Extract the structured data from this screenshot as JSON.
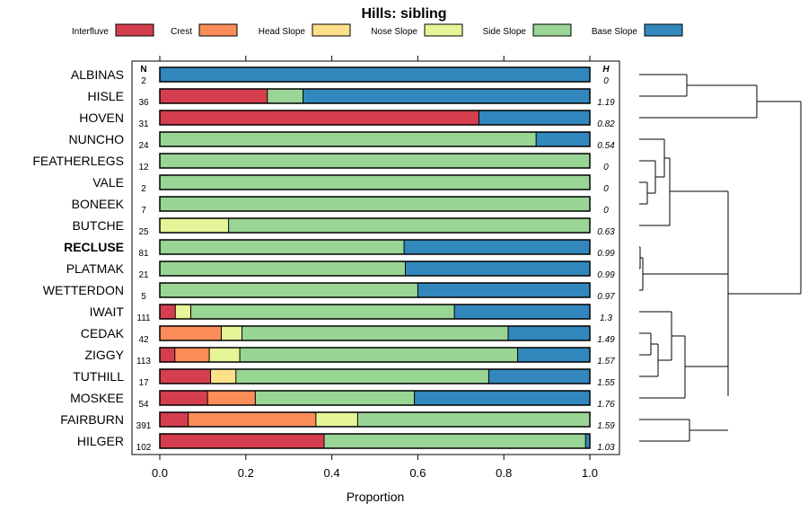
{
  "chart_data": {
    "type": "bar",
    "orientation": "horizontal",
    "stacked": true,
    "title": "Hills: sibling",
    "xlabel": "Proportion",
    "ylabel": "",
    "xlim": [
      0,
      1
    ],
    "x_ticks": [
      0.0,
      0.2,
      0.4,
      0.6,
      0.8,
      1.0
    ],
    "x_tick_labels": [
      "0.0",
      "0.2",
      "0.4",
      "0.6",
      "0.8",
      "1.0"
    ],
    "n_header": "N",
    "h_header": "H",
    "legend_position": "top",
    "categories_legend": [
      {
        "name": "Interfluve",
        "color": "#D53E4F"
      },
      {
        "name": "Crest",
        "color": "#FC8D59"
      },
      {
        "name": "Head Slope",
        "color": "#FEE08B"
      },
      {
        "name": "Nose Slope",
        "color": "#E6F598"
      },
      {
        "name": "Side Slope",
        "color": "#99D594"
      },
      {
        "name": "Base Slope",
        "color": "#3288BD"
      }
    ],
    "rows": [
      {
        "name": "ALBINAS",
        "n": "2",
        "h": "0",
        "bold": false,
        "values": [
          0,
          0,
          0,
          0,
          0,
          1.0
        ]
      },
      {
        "name": "HISLE",
        "n": "36",
        "h": "1.19",
        "bold": false,
        "values": [
          0.25,
          0,
          0,
          0,
          0.083,
          0.667
        ]
      },
      {
        "name": "HOVEN",
        "n": "31",
        "h": "0.82",
        "bold": false,
        "values": [
          0.742,
          0,
          0,
          0,
          0,
          0.258
        ]
      },
      {
        "name": "NUNCHO",
        "n": "24",
        "h": "0.54",
        "bold": false,
        "values": [
          0,
          0,
          0,
          0,
          0.875,
          0.125
        ]
      },
      {
        "name": "FEATHERLEGS",
        "n": "12",
        "h": "0",
        "bold": false,
        "values": [
          0,
          0,
          0,
          0,
          1.0,
          0
        ]
      },
      {
        "name": "VALE",
        "n": "2",
        "h": "0",
        "bold": false,
        "values": [
          0,
          0,
          0,
          0,
          1.0,
          0
        ]
      },
      {
        "name": "BONEEK",
        "n": "7",
        "h": "0",
        "bold": false,
        "values": [
          0,
          0,
          0,
          0,
          1.0,
          0
        ]
      },
      {
        "name": "BUTCHE",
        "n": "25",
        "h": "0.63",
        "bold": false,
        "values": [
          0,
          0,
          0,
          0.16,
          0.84,
          0
        ]
      },
      {
        "name": "RECLUSE",
        "n": "81",
        "h": "0.99",
        "bold": true,
        "values": [
          0,
          0,
          0,
          0,
          0.568,
          0.432
        ]
      },
      {
        "name": "PLATMAK",
        "n": "21",
        "h": "0.99",
        "bold": false,
        "values": [
          0,
          0,
          0,
          0,
          0.571,
          0.429
        ]
      },
      {
        "name": "WETTERDON",
        "n": "5",
        "h": "0.97",
        "bold": false,
        "values": [
          0,
          0,
          0,
          0,
          0.6,
          0.4
        ]
      },
      {
        "name": "IWAIT",
        "n": "111",
        "h": "1.3",
        "bold": false,
        "values": [
          0.036,
          0,
          0,
          0.036,
          0.613,
          0.315
        ]
      },
      {
        "name": "CEDAK",
        "n": "42",
        "h": "1.49",
        "bold": false,
        "values": [
          0,
          0.143,
          0,
          0.048,
          0.619,
          0.19
        ]
      },
      {
        "name": "ZIGGY",
        "n": "113",
        "h": "1.57",
        "bold": false,
        "values": [
          0.035,
          0.08,
          0,
          0.071,
          0.646,
          0.168
        ]
      },
      {
        "name": "TUTHILL",
        "n": "17",
        "h": "1.55",
        "bold": false,
        "values": [
          0.118,
          0,
          0.059,
          0,
          0.588,
          0.235
        ]
      },
      {
        "name": "MOSKEE",
        "n": "54",
        "h": "1.76",
        "bold": false,
        "values": [
          0.111,
          0.111,
          0,
          0,
          0.37,
          0.408
        ]
      },
      {
        "name": "FAIRBURN",
        "n": "391",
        "h": "1.59",
        "bold": false,
        "values": [
          0.066,
          0.297,
          0,
          0.097,
          0.54,
          0
        ]
      },
      {
        "name": "HILGER",
        "n": "102",
        "h": "1.03",
        "bold": false,
        "values": [
          0.382,
          0,
          0,
          0,
          0.608,
          0.01
        ]
      }
    ]
  }
}
